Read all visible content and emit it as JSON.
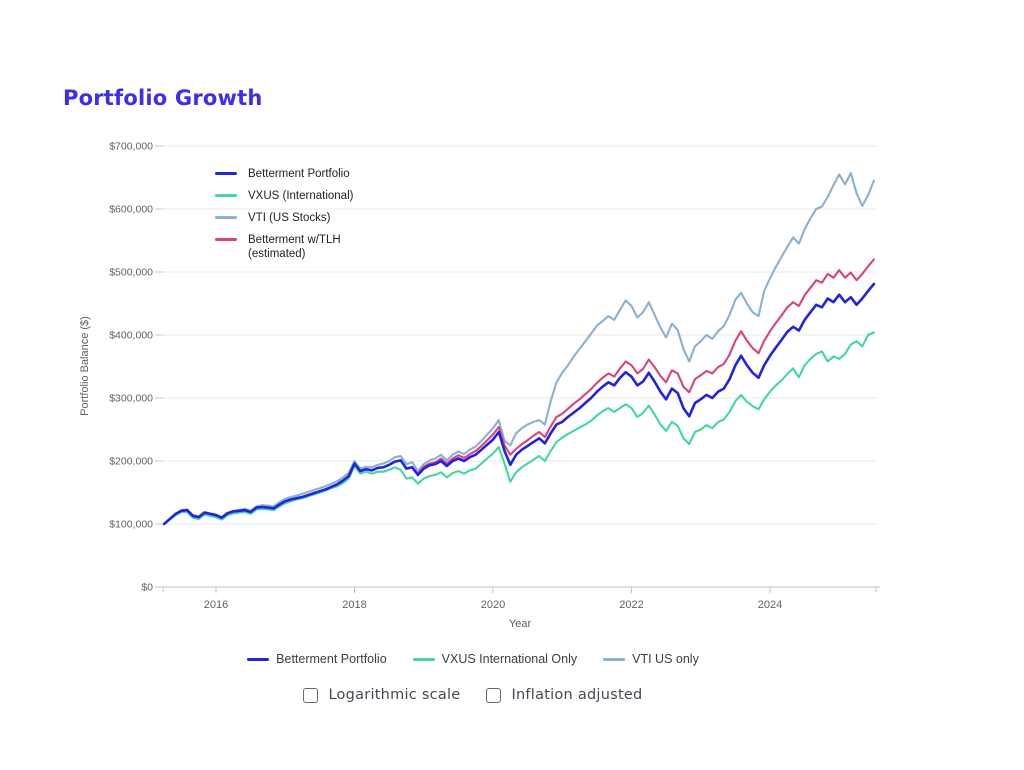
{
  "page": {
    "title": "Portfolio Growth"
  },
  "chart_data": {
    "type": "line",
    "title": "Portfolio Growth",
    "xlabel": "Year",
    "ylabel": "Portfolio Balance ($)",
    "grid": "horizontal",
    "legend_position": "top-left-inside",
    "x_start_year": 2015.25,
    "x_step_years": 0.0833333,
    "xlim": [
      2015.2,
      2025.6
    ],
    "ylim": [
      0,
      700000
    ],
    "x_ticks": [
      {
        "year": 2016,
        "label": "2016"
      },
      {
        "year": 2018,
        "label": "2018"
      },
      {
        "year": 2020,
        "label": "2020"
      },
      {
        "year": 2022,
        "label": "2022"
      },
      {
        "year": 2024,
        "label": "2024"
      }
    ],
    "y_ticks": [
      {
        "value": 0,
        "label": "$0"
      },
      {
        "value": 100000,
        "label": "$100,000"
      },
      {
        "value": 200000,
        "label": "$200,000"
      },
      {
        "value": 300000,
        "label": "$300,000"
      },
      {
        "value": 400000,
        "label": "$400,000"
      },
      {
        "value": 500000,
        "label": "$500,000"
      },
      {
        "value": 600000,
        "label": "$600,000"
      },
      {
        "value": 700000,
        "label": "$700,000"
      }
    ],
    "values_unit": "USD thousands",
    "series": [
      {
        "name": "Betterment Portfolio",
        "color": "#2323dd",
        "values_usd_thousands": [
          100,
          108,
          116,
          121,
          122,
          113,
          111,
          118,
          116,
          114,
          110,
          117,
          120,
          121,
          122,
          119,
          126,
          127,
          126,
          125,
          131,
          136,
          139,
          141,
          143,
          146,
          149,
          152,
          155,
          159,
          163,
          169,
          176,
          196,
          184,
          187,
          185,
          189,
          190,
          194,
          199,
          201,
          188,
          190,
          178,
          188,
          193,
          195,
          200,
          192,
          200,
          204,
          200,
          206,
          210,
          218,
          226,
          234,
          246,
          216,
          194,
          210,
          218,
          224,
          230,
          236,
          228,
          244,
          258,
          262,
          270,
          277,
          284,
          292,
          300,
          310,
          318,
          325,
          320,
          332,
          341,
          334,
          320,
          326,
          340,
          326,
          310,
          298,
          315,
          308,
          284,
          271,
          292,
          298,
          305,
          300,
          310,
          315,
          330,
          352,
          367,
          352,
          340,
          332,
          352,
          367,
          380,
          392,
          405,
          413,
          407,
          424,
          436,
          448,
          444,
          458,
          452,
          464,
          452,
          460,
          448,
          458,
          470,
          481
        ]
      },
      {
        "name": "VXUS (International)",
        "color": "#43d79f",
        "values_usd_thousands": [
          100,
          107,
          114,
          119,
          119,
          110,
          108,
          115,
          113,
          111,
          107,
          114,
          117,
          118,
          119,
          116,
          123,
          124,
          123,
          122,
          128,
          133,
          136,
          139,
          141,
          144,
          147,
          150,
          153,
          157,
          160,
          165,
          172,
          192,
          180,
          183,
          180,
          183,
          183,
          186,
          190,
          186,
          172,
          174,
          164,
          172,
          176,
          178,
          182,
          174,
          181,
          184,
          180,
          185,
          188,
          196,
          204,
          212,
          222,
          196,
          167,
          182,
          190,
          196,
          202,
          208,
          200,
          216,
          230,
          237,
          243,
          248,
          253,
          258,
          264,
          272,
          279,
          284,
          278,
          284,
          290,
          284,
          270,
          276,
          288,
          274,
          258,
          248,
          262,
          256,
          236,
          227,
          246,
          250,
          257,
          252,
          262,
          266,
          278,
          295,
          305,
          294,
          287,
          282,
          298,
          310,
          320,
          328,
          338,
          347,
          333,
          352,
          362,
          370,
          374,
          358,
          366,
          362,
          370,
          385,
          390,
          382,
          400,
          404
        ]
      },
      {
        "name": "VTI (US Stocks)",
        "color": "#8cb0d2",
        "values_usd_thousands": [
          100,
          108,
          116,
          122,
          123,
          114,
          112,
          119,
          117,
          115,
          111,
          118,
          121,
          122,
          124,
          121,
          128,
          130,
          129,
          128,
          135,
          140,
          143,
          145,
          148,
          151,
          154,
          157,
          160,
          164,
          168,
          174,
          181,
          200,
          188,
          191,
          190,
          194,
          196,
          200,
          206,
          208,
          195,
          198,
          184,
          195,
          201,
          204,
          210,
          201,
          210,
          215,
          211,
          218,
          223,
          232,
          242,
          252,
          265,
          232,
          225,
          244,
          252,
          258,
          262,
          265,
          258,
          295,
          325,
          340,
          352,
          366,
          378,
          390,
          402,
          415,
          422,
          430,
          424,
          440,
          455,
          446,
          428,
          436,
          452,
          432,
          412,
          396,
          418,
          408,
          378,
          358,
          382,
          390,
          400,
          394,
          406,
          414,
          432,
          456,
          467,
          450,
          436,
          430,
          470,
          490,
          508,
          524,
          540,
          555,
          545,
          568,
          585,
          600,
          604,
          619,
          638,
          655,
          639,
          657,
          625,
          605,
          622,
          645
        ]
      },
      {
        "name": "Betterment w/TLH (estimated)",
        "color": "#d8437f",
        "values_usd_thousands": [
          null,
          null,
          null,
          null,
          null,
          null,
          null,
          null,
          null,
          null,
          null,
          null,
          null,
          null,
          null,
          null,
          null,
          null,
          null,
          null,
          null,
          null,
          null,
          null,
          null,
          null,
          null,
          null,
          null,
          null,
          null,
          null,
          null,
          null,
          null,
          null,
          null,
          null,
          null,
          null,
          null,
          null,
          null,
          null,
          180,
          191,
          196,
          198,
          204,
          196,
          204,
          209,
          205,
          211,
          216,
          224,
          233,
          242,
          254,
          225,
          210,
          219,
          227,
          233,
          240,
          246,
          238,
          255,
          270,
          275,
          283,
          291,
          298,
          306,
          314,
          324,
          332,
          339,
          334,
          347,
          358,
          352,
          339,
          346,
          361,
          349,
          335,
          325,
          344,
          339,
          318,
          309,
          330,
          336,
          343,
          339,
          349,
          354,
          369,
          391,
          406,
          391,
          379,
          371,
          391,
          406,
          419,
          431,
          444,
          452,
          446,
          463,
          475,
          487,
          483,
          497,
          491,
          503,
          491,
          499,
          487,
          497,
          509,
          520
        ]
      }
    ]
  },
  "inner_legend": {
    "items": [
      {
        "label": "Betterment Portfolio",
        "color": "#2323dd"
      },
      {
        "label": "VXUS (International)",
        "color": "#43d79f"
      },
      {
        "label": "VTI (US Stocks)",
        "color": "#8cb0d2"
      },
      {
        "label": "Betterment w/TLH",
        "label_line2": "(estimated)",
        "color": "#d8437f"
      }
    ]
  },
  "bottom_legend": {
    "items": [
      {
        "label": "Betterment Portfolio",
        "color": "#2323dd"
      },
      {
        "label": "VXUS International Only",
        "color": "#43d79f"
      },
      {
        "label": "VTI US only",
        "color": "#8cb0d2"
      }
    ]
  },
  "controls": {
    "checkboxes": [
      {
        "label": "Logarithmic scale",
        "checked": false
      },
      {
        "label": "Inflation adjusted",
        "checked": false
      }
    ]
  }
}
